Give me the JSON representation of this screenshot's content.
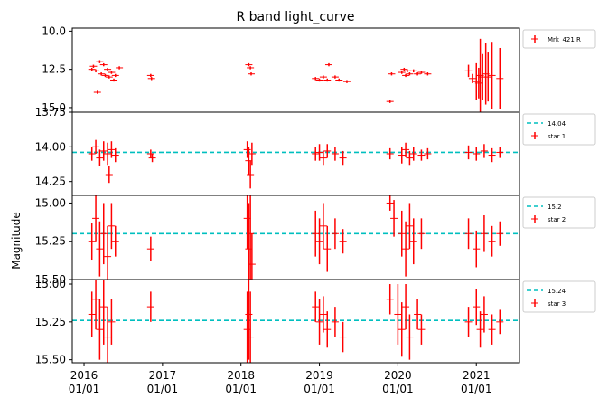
{
  "chart_data": {
    "type": "scatter",
    "title": "R band light_curve",
    "ylabel": "Magnitude",
    "x_ticks": [
      {
        "x": 2016.0,
        "label_year": "2016",
        "label_date": "01/01"
      },
      {
        "x": 2017.0,
        "label_year": "2017",
        "label_date": "01/01"
      },
      {
        "x": 2018.0,
        "label_year": "2018",
        "label_date": "01/01"
      },
      {
        "x": 2019.0,
        "label_year": "2019",
        "label_date": "01/01"
      },
      {
        "x": 2020.0,
        "label_year": "2020",
        "label_date": "01/01"
      },
      {
        "x": 2021.0,
        "label_year": "2021",
        "label_date": "01/01"
      }
    ],
    "xlim": [
      2015.85,
      2021.55
    ],
    "panels": [
      {
        "name": "Mrk_421 R",
        "ylim": [
          15.3,
          9.8
        ],
        "inverted": true,
        "y_ticks": [
          {
            "v": 10.0,
            "label": "10.0"
          },
          {
            "v": 12.5,
            "label": "12.5"
          },
          {
            "v": 15.0,
            "label": "15.0"
          }
        ],
        "legend": [
          {
            "kind": "errorbar",
            "label": "Mrk_421 R"
          }
        ],
        "points": [
          [
            2016.1,
            12.5,
            0.1
          ],
          [
            2016.12,
            12.3,
            0.1
          ],
          [
            2016.15,
            12.6,
            0.1
          ],
          [
            2016.17,
            14.0,
            0.1
          ],
          [
            2016.2,
            12.0,
            0.1
          ],
          [
            2016.22,
            12.8,
            0.1
          ],
          [
            2016.25,
            12.2,
            0.1
          ],
          [
            2016.27,
            12.9,
            0.1
          ],
          [
            2016.3,
            12.5,
            0.1
          ],
          [
            2016.32,
            13.0,
            0.1
          ],
          [
            2016.35,
            12.7,
            0.1
          ],
          [
            2016.38,
            13.2,
            0.1
          ],
          [
            2016.4,
            12.9,
            0.1
          ],
          [
            2016.45,
            12.4,
            0.1
          ],
          [
            2016.85,
            12.9,
            0.1
          ],
          [
            2016.86,
            13.1,
            0.1
          ],
          [
            2018.1,
            12.2,
            0.1
          ],
          [
            2018.12,
            12.4,
            0.1
          ],
          [
            2018.13,
            12.8,
            0.1
          ],
          [
            2018.95,
            13.1,
            0.1
          ],
          [
            2019.0,
            13.2,
            0.1
          ],
          [
            2019.05,
            13.0,
            0.1
          ],
          [
            2019.1,
            13.2,
            0.1
          ],
          [
            2019.12,
            12.2,
            0.1
          ],
          [
            2019.2,
            13.0,
            0.1
          ],
          [
            2019.25,
            13.2,
            0.1
          ],
          [
            2019.35,
            13.3,
            0.1
          ],
          [
            2019.9,
            14.6,
            0.1
          ],
          [
            2019.92,
            12.8,
            0.1
          ],
          [
            2020.05,
            12.7,
            0.1
          ],
          [
            2020.08,
            12.5,
            0.1
          ],
          [
            2020.1,
            12.9,
            0.1
          ],
          [
            2020.12,
            12.6,
            0.1
          ],
          [
            2020.15,
            12.8,
            0.1
          ],
          [
            2020.2,
            12.6,
            0.1
          ],
          [
            2020.25,
            12.8,
            0.1
          ],
          [
            2020.3,
            12.7,
            0.1
          ],
          [
            2020.38,
            12.8,
            0.1
          ],
          [
            2020.9,
            12.6,
            0.4
          ],
          [
            2020.95,
            13.1,
            0.3
          ],
          [
            2021.0,
            13.3,
            1.2
          ],
          [
            2021.03,
            13.4,
            1.0
          ],
          [
            2021.05,
            12.9,
            2.4
          ],
          [
            2021.08,
            13.0,
            1.5
          ],
          [
            2021.12,
            12.8,
            2.0
          ],
          [
            2021.15,
            13.0,
            1.6
          ],
          [
            2021.2,
            12.9,
            2.2
          ],
          [
            2021.3,
            13.1,
            2.0
          ]
        ]
      },
      {
        "name": "star 1",
        "ylim": [
          14.35,
          13.75
        ],
        "inverted": true,
        "y_ticks": [
          {
            "v": 13.75,
            "label": "13.75"
          },
          {
            "v": 14.0,
            "label": "14.00"
          },
          {
            "v": 14.25,
            "label": "14.25"
          }
        ],
        "hline": 14.04,
        "legend": [
          {
            "kind": "line",
            "label": "14.04"
          },
          {
            "kind": "errorbar",
            "label": "star 1"
          }
        ],
        "points": [
          [
            2016.1,
            14.05,
            0.05
          ],
          [
            2016.15,
            14.0,
            0.05
          ],
          [
            2016.2,
            14.08,
            0.06
          ],
          [
            2016.25,
            14.03,
            0.07
          ],
          [
            2016.3,
            14.05,
            0.08
          ],
          [
            2016.32,
            14.2,
            0.06
          ],
          [
            2016.35,
            14.02,
            0.06
          ],
          [
            2016.4,
            14.06,
            0.05
          ],
          [
            2016.85,
            14.05,
            0.03
          ],
          [
            2016.87,
            14.08,
            0.03
          ],
          [
            2018.08,
            14.02,
            0.06
          ],
          [
            2018.1,
            14.1,
            0.1
          ],
          [
            2018.12,
            14.2,
            0.1
          ],
          [
            2018.14,
            14.05,
            0.08
          ],
          [
            2018.95,
            14.05,
            0.05
          ],
          [
            2019.0,
            14.04,
            0.06
          ],
          [
            2019.05,
            14.08,
            0.05
          ],
          [
            2019.1,
            14.03,
            0.05
          ],
          [
            2019.2,
            14.05,
            0.05
          ],
          [
            2019.3,
            14.08,
            0.05
          ],
          [
            2019.9,
            14.05,
            0.04
          ],
          [
            2020.05,
            14.06,
            0.06
          ],
          [
            2020.1,
            14.02,
            0.05
          ],
          [
            2020.15,
            14.08,
            0.05
          ],
          [
            2020.2,
            14.05,
            0.05
          ],
          [
            2020.3,
            14.06,
            0.04
          ],
          [
            2020.38,
            14.05,
            0.04
          ],
          [
            2020.9,
            14.04,
            0.05
          ],
          [
            2021.0,
            14.05,
            0.05
          ],
          [
            2021.1,
            14.03,
            0.05
          ],
          [
            2021.2,
            14.06,
            0.05
          ],
          [
            2021.3,
            14.04,
            0.04
          ]
        ]
      },
      {
        "name": "star 2",
        "ylim": [
          15.5,
          14.95
        ],
        "inverted": true,
        "y_ticks": [
          {
            "v": 15.0,
            "label": "15.00"
          },
          {
            "v": 15.25,
            "label": "15.25"
          },
          {
            "v": 15.5,
            "label": "15.50"
          }
        ],
        "hline": 15.2,
        "legend": [
          {
            "kind": "line",
            "label": "15.2"
          },
          {
            "kind": "errorbar",
            "label": "star 2"
          }
        ],
        "points": [
          [
            2016.1,
            15.25,
            0.12
          ],
          [
            2016.15,
            15.1,
            0.15
          ],
          [
            2016.2,
            15.3,
            0.18
          ],
          [
            2016.25,
            15.2,
            0.2
          ],
          [
            2016.3,
            15.35,
            0.2
          ],
          [
            2016.35,
            15.15,
            0.15
          ],
          [
            2016.4,
            15.25,
            0.1
          ],
          [
            2016.85,
            15.3,
            0.08
          ],
          [
            2018.08,
            15.1,
            0.2
          ],
          [
            2018.1,
            15.3,
            0.3
          ],
          [
            2018.12,
            15.2,
            0.3
          ],
          [
            2018.14,
            15.4,
            0.2
          ],
          [
            2018.95,
            15.2,
            0.15
          ],
          [
            2019.0,
            15.25,
            0.15
          ],
          [
            2019.05,
            15.15,
            0.15
          ],
          [
            2019.1,
            15.3,
            0.15
          ],
          [
            2019.2,
            15.2,
            0.1
          ],
          [
            2019.3,
            15.25,
            0.08
          ],
          [
            2019.9,
            15.0,
            0.05
          ],
          [
            2019.95,
            15.1,
            0.12
          ],
          [
            2020.05,
            15.2,
            0.15
          ],
          [
            2020.1,
            15.3,
            0.18
          ],
          [
            2020.15,
            15.15,
            0.15
          ],
          [
            2020.2,
            15.25,
            0.15
          ],
          [
            2020.3,
            15.2,
            0.1
          ],
          [
            2020.9,
            15.2,
            0.1
          ],
          [
            2021.0,
            15.3,
            0.12
          ],
          [
            2021.1,
            15.2,
            0.12
          ],
          [
            2021.2,
            15.25,
            0.1
          ],
          [
            2021.3,
            15.2,
            0.08
          ]
        ]
      },
      {
        "name": "star 3",
        "ylim": [
          15.52,
          14.97
        ],
        "inverted": true,
        "y_ticks": [
          {
            "v": 15.0,
            "label": "15.00"
          },
          {
            "v": 15.25,
            "label": "15.25"
          },
          {
            "v": 15.5,
            "label": "15.50"
          }
        ],
        "hline": 15.24,
        "legend": [
          {
            "kind": "line",
            "label": "15.24"
          },
          {
            "kind": "errorbar",
            "label": "star 3"
          }
        ],
        "points": [
          [
            2016.1,
            15.2,
            0.15
          ],
          [
            2016.15,
            15.1,
            0.2
          ],
          [
            2016.2,
            15.3,
            0.2
          ],
          [
            2016.25,
            15.15,
            0.25
          ],
          [
            2016.3,
            15.35,
            0.2
          ],
          [
            2016.35,
            15.25,
            0.15
          ],
          [
            2016.85,
            15.15,
            0.1
          ],
          [
            2018.08,
            15.3,
            0.25
          ],
          [
            2018.1,
            15.2,
            0.3
          ],
          [
            2018.12,
            15.35,
            0.3
          ],
          [
            2018.95,
            15.15,
            0.1
          ],
          [
            2019.0,
            15.25,
            0.15
          ],
          [
            2019.05,
            15.2,
            0.12
          ],
          [
            2019.1,
            15.3,
            0.12
          ],
          [
            2019.2,
            15.25,
            0.1
          ],
          [
            2019.3,
            15.35,
            0.1
          ],
          [
            2019.9,
            15.1,
            0.1
          ],
          [
            2020.0,
            15.2,
            0.2
          ],
          [
            2020.05,
            15.3,
            0.18
          ],
          [
            2020.1,
            15.15,
            0.15
          ],
          [
            2020.15,
            15.35,
            0.15
          ],
          [
            2020.25,
            15.2,
            0.1
          ],
          [
            2020.3,
            15.3,
            0.1
          ],
          [
            2020.9,
            15.25,
            0.1
          ],
          [
            2021.0,
            15.15,
            0.12
          ],
          [
            2021.05,
            15.3,
            0.12
          ],
          [
            2021.1,
            15.2,
            0.12
          ],
          [
            2021.2,
            15.3,
            0.1
          ],
          [
            2021.3,
            15.25,
            0.08
          ]
        ]
      }
    ],
    "colors": {
      "points": "#ff0000",
      "hline": "#00bfbf",
      "axes": "#000000"
    },
    "grid": false
  }
}
